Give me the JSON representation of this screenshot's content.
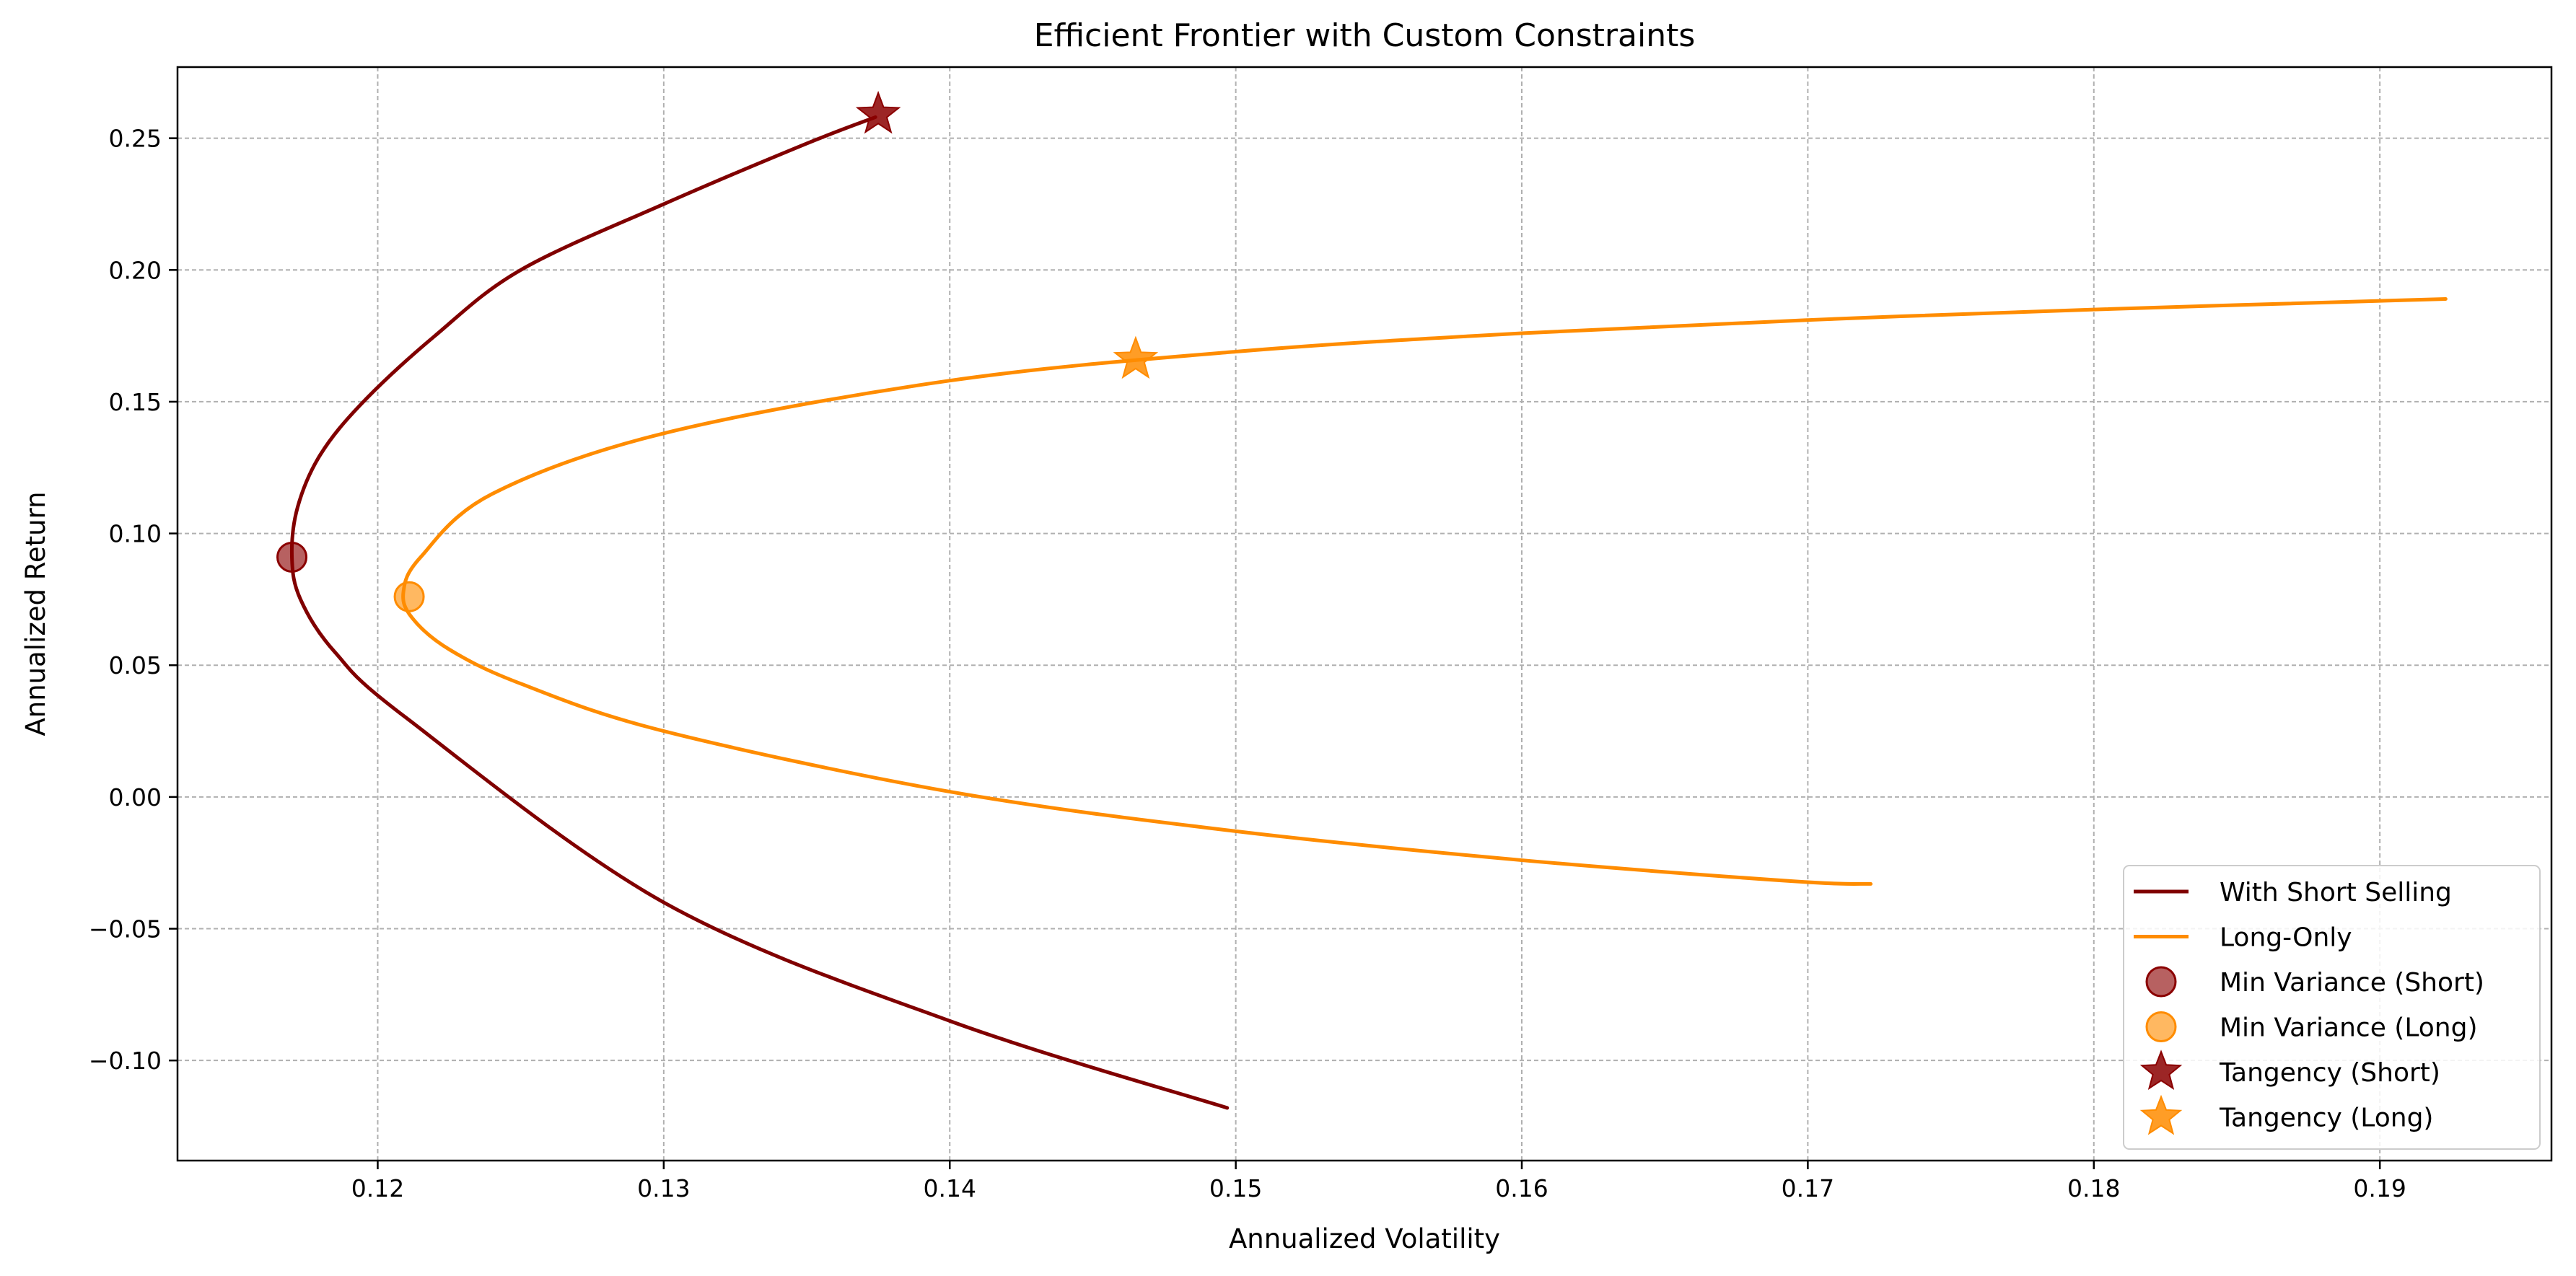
{
  "chart_data": {
    "type": "line",
    "title": "Efficient Frontier with Custom Constraints",
    "xlabel": "Annualized Volatility",
    "ylabel": "Annualized Return",
    "xlim": [
      0.113,
      0.196
    ],
    "ylim": [
      -0.138,
      0.277
    ],
    "xticks": [
      0.12,
      0.13,
      0.14,
      0.15,
      0.16,
      0.17,
      0.18,
      0.19
    ],
    "xtick_labels": [
      "0.12",
      "0.13",
      "0.14",
      "0.15",
      "0.16",
      "0.17",
      "0.18",
      "0.19"
    ],
    "yticks": [
      -0.1,
      -0.05,
      0.0,
      0.05,
      0.1,
      0.15,
      0.2,
      0.25
    ],
    "ytick_labels": [
      "−0.10",
      "−0.05",
      "0.00",
      "0.05",
      "0.10",
      "0.15",
      "0.20",
      "0.25"
    ],
    "grid": true,
    "legend_position": "bottom-right",
    "series": [
      {
        "name": "With Short Selling",
        "kind": "line",
        "color": "#800000",
        "x": [
          0.1497,
          0.14,
          0.13,
          0.121,
          0.1185,
          0.1173,
          0.117,
          0.1172,
          0.118,
          0.1195,
          0.122,
          0.125,
          0.13,
          0.135,
          0.1374
        ],
        "y": [
          -0.118,
          -0.085,
          -0.04,
          0.03,
          0.055,
          0.075,
          0.091,
          0.11,
          0.13,
          0.15,
          0.175,
          0.2,
          0.225,
          0.248,
          0.258
        ]
      },
      {
        "name": "Long-Only",
        "kind": "line",
        "color": "#ff8c00",
        "x": [
          0.1722,
          0.1695,
          0.16,
          0.15,
          0.14,
          0.13,
          0.125,
          0.1225,
          0.1212,
          0.1209,
          0.1215,
          0.124,
          0.13,
          0.14,
          0.15,
          0.16,
          0.17,
          0.18,
          0.1923
        ],
        "y": [
          -0.033,
          -0.032,
          -0.024,
          -0.013,
          0.002,
          0.025,
          0.043,
          0.056,
          0.068,
          0.078,
          0.091,
          0.115,
          0.138,
          0.158,
          0.169,
          0.176,
          0.181,
          0.185,
          0.189
        ]
      },
      {
        "name": "Min Variance (Short)",
        "kind": "scatter",
        "marker": "circle",
        "color": "#8b0000",
        "x": [
          0.117
        ],
        "y": [
          0.091
        ]
      },
      {
        "name": "Min Variance (Long)",
        "kind": "scatter",
        "marker": "circle",
        "color": "#ff8c00",
        "x": [
          0.1211
        ],
        "y": [
          0.076
        ]
      },
      {
        "name": "Tangency (Short)",
        "kind": "scatter",
        "marker": "star",
        "color": "#8b0000",
        "x": [
          0.1375
        ],
        "y": [
          0.259
        ]
      },
      {
        "name": "Tangency (Long)",
        "kind": "scatter",
        "marker": "star",
        "color": "#ff8c00",
        "x": [
          0.1465
        ],
        "y": [
          0.166
        ]
      }
    ]
  }
}
